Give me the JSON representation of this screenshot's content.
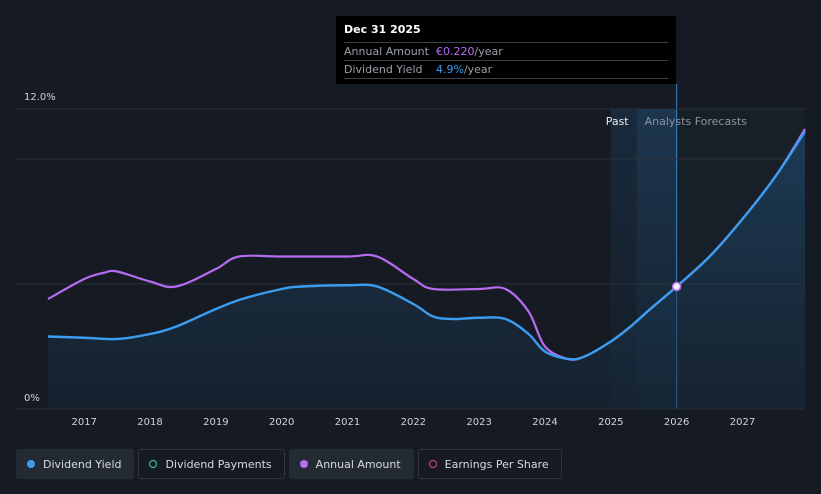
{
  "tooltip": {
    "date": "Dec 31 2025",
    "annual_label": "Annual Amount",
    "annual_value": "€0.220",
    "annual_unit": "/year",
    "yield_label": "Dividend Yield",
    "yield_value": "4.9%",
    "yield_unit": "/year"
  },
  "region_labels": {
    "past": "Past",
    "forecast": "Analysts Forecasts"
  },
  "legend": [
    {
      "label": "Dividend Yield",
      "color": "#3b9df0",
      "style": "filled",
      "active": true
    },
    {
      "label": "Dividend Payments",
      "color": "#3ed3c2",
      "style": "hollow",
      "active": false
    },
    {
      "label": "Annual Amount",
      "color": "#b66cf0",
      "style": "filled",
      "active": true
    },
    {
      "label": "Earnings Per Share",
      "color": "#e0457f",
      "style": "hollow",
      "active": false
    }
  ],
  "colors": {
    "yield": "#3b9df0",
    "amount": "#b66cf0",
    "grid": "#2c313b",
    "axis_text": "#cfd3da",
    "forecast_band": "#1d3146"
  },
  "chart_data": {
    "type": "line",
    "ylim": [
      0,
      12
    ],
    "y_ticks": [
      "0%",
      "12.0%"
    ],
    "x_ticks": [
      "2017",
      "2018",
      "2019",
      "2020",
      "2021",
      "2022",
      "2023",
      "2024",
      "2025",
      "2026",
      "2027"
    ],
    "xlim": [
      2016.45,
      2027.95
    ],
    "forecast_start": 2026,
    "highlight_point": {
      "x": 2026,
      "y": 4.9
    },
    "series": [
      {
        "name": "Dividend Yield",
        "x": [
          2016.45,
          2017.0,
          2017.5,
          2018.0,
          2018.4,
          2019.0,
          2019.4,
          2020.0,
          2020.3,
          2021.0,
          2021.45,
          2022.0,
          2022.3,
          2022.6,
          2023.0,
          2023.4,
          2023.75,
          2024.0,
          2024.35,
          2024.6,
          2025.0,
          2025.3,
          2025.6,
          2026.0,
          2026.5,
          2027.0,
          2027.5,
          2027.95
        ],
        "y": [
          2.9,
          2.85,
          2.8,
          3.0,
          3.3,
          4.0,
          4.4,
          4.8,
          4.9,
          4.95,
          4.9,
          4.2,
          3.7,
          3.6,
          3.65,
          3.6,
          3.0,
          2.3,
          2.0,
          2.1,
          2.7,
          3.3,
          4.0,
          4.9,
          6.1,
          7.6,
          9.3,
          11.1
        ]
      },
      {
        "name": "Annual Amount",
        "x": [
          2016.45,
          2017.0,
          2017.3,
          2017.5,
          2018.0,
          2018.4,
          2019.0,
          2019.35,
          2020.0,
          2021.0,
          2021.45,
          2022.0,
          2022.3,
          2023.0,
          2023.4,
          2023.75,
          2024.0,
          2024.35,
          2024.6,
          2025.0,
          2025.3,
          2025.6,
          2026.0,
          2026.5,
          2027.0,
          2027.5,
          2027.95
        ],
        "y": [
          4.4,
          5.2,
          5.45,
          5.5,
          5.1,
          4.9,
          5.6,
          6.1,
          6.1,
          6.1,
          6.1,
          5.2,
          4.8,
          4.8,
          4.8,
          3.9,
          2.5,
          2.0,
          2.1,
          2.7,
          3.3,
          4.0,
          4.9,
          6.1,
          7.6,
          9.3,
          11.2
        ]
      }
    ]
  }
}
